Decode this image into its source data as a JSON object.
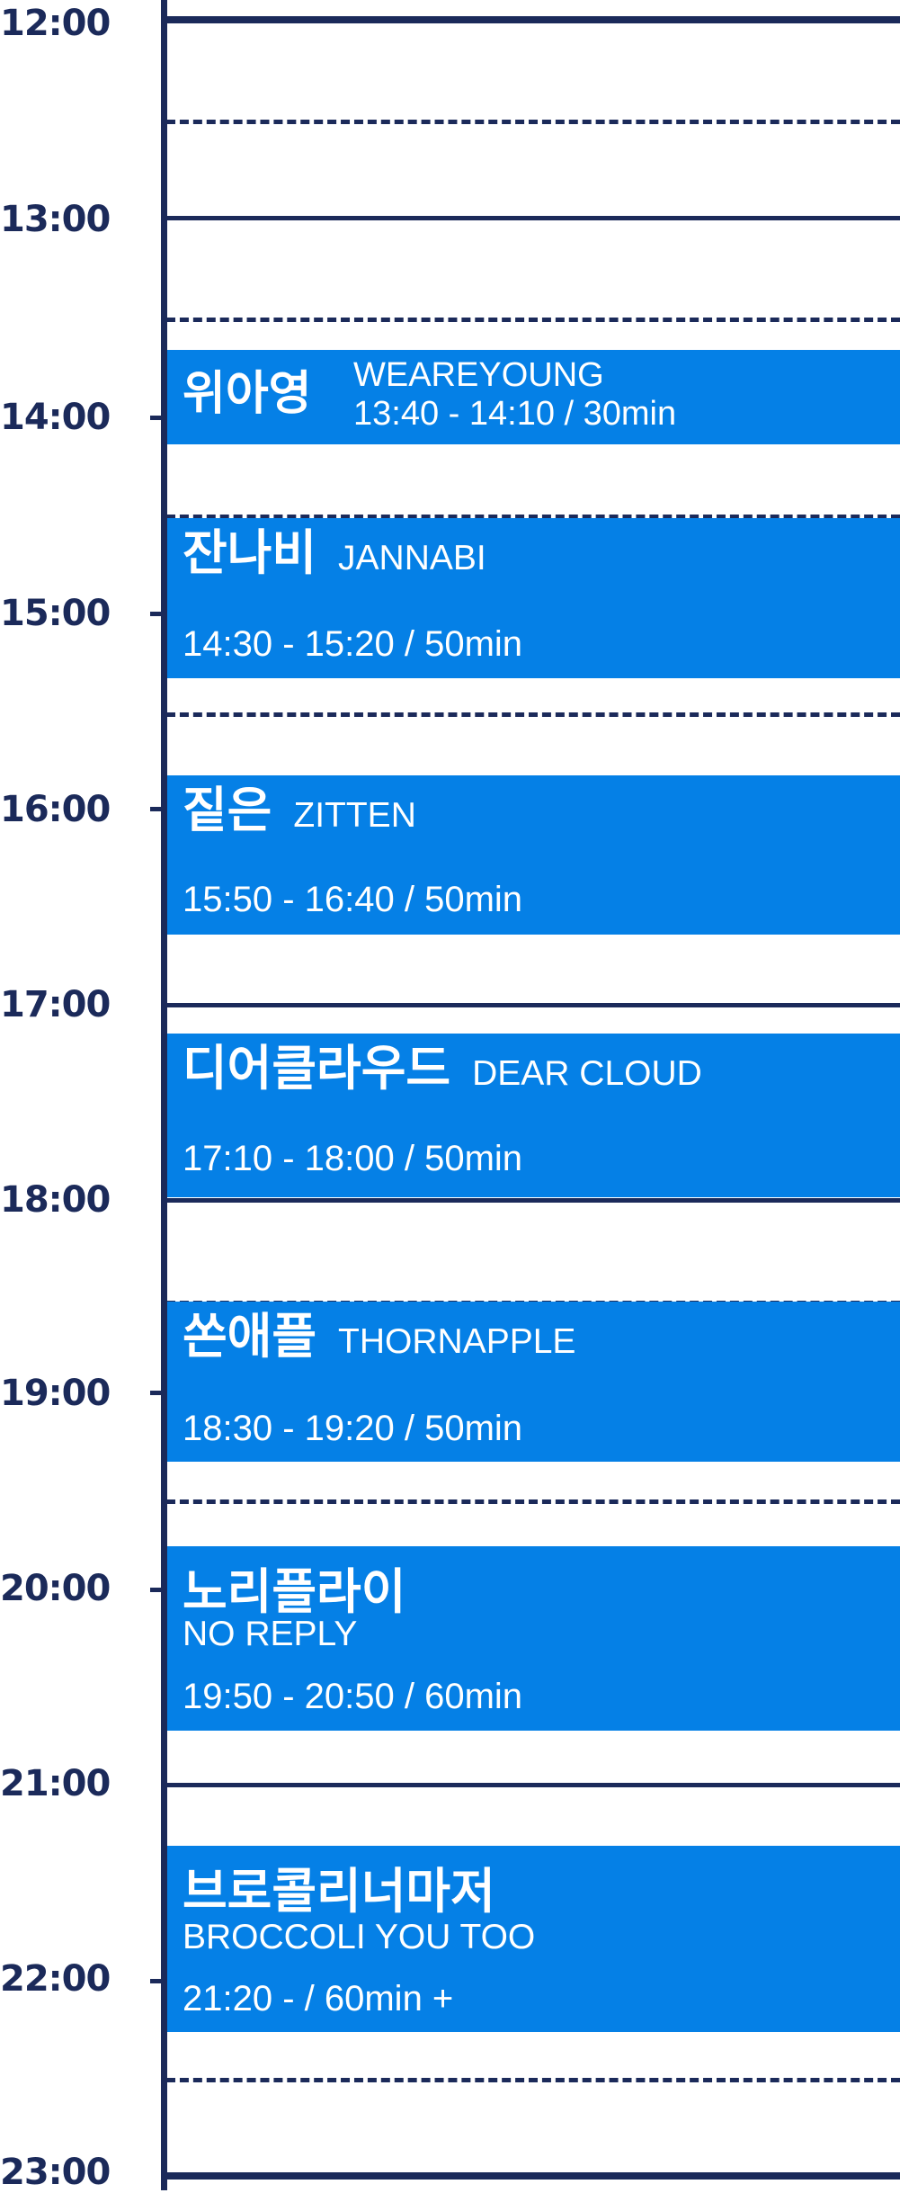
{
  "hours": [
    "12:00",
    "13:00",
    "14:00",
    "15:00",
    "16:00",
    "17:00",
    "18:00",
    "19:00",
    "20:00",
    "21:00",
    "22:00",
    "23:00"
  ],
  "colors": {
    "axis": "#1b2a5a",
    "block": "#0580e6",
    "block_text": "#ffffff",
    "background": "#ffffff"
  },
  "performances": [
    {
      "name_ko": "위아영",
      "name_en": "WEAREYOUNG",
      "time": "13:40 - 14:10 / 30min"
    },
    {
      "name_ko": "잔나비",
      "name_en": "JANNABI",
      "time": "14:30 - 15:20 / 50min"
    },
    {
      "name_ko": "짙은",
      "name_en": "ZITTEN",
      "time": "15:50 - 16:40 / 50min"
    },
    {
      "name_ko": "디어클라우드",
      "name_en": "DEAR CLOUD",
      "time": "17:10 - 18:00 / 50min"
    },
    {
      "name_ko": "쏜애플",
      "name_en": "THORNAPPLE",
      "time": "18:30 - 19:20 / 50min"
    },
    {
      "name_ko": "노리플라이",
      "name_en": "NO REPLY",
      "time": "19:50 - 20:50 / 60min"
    },
    {
      "name_ko": "브로콜리너마저",
      "name_en": "BROCCOLI YOU TOO",
      "time": "21:20 - / 60min +"
    }
  ]
}
